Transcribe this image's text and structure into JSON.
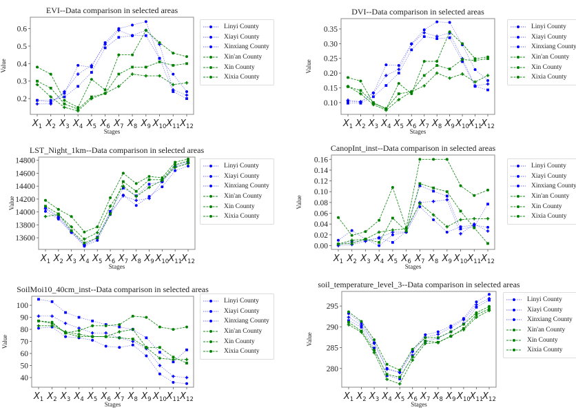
{
  "colors": {
    "blue": "#0000ff",
    "green": "#008000",
    "frame": "#888888"
  },
  "legend": [
    "Linyi County",
    "Xiayi County",
    "Xinxiang County",
    "Xin'an County",
    "Xin County",
    "Xixia County"
  ],
  "chart_data": [
    {
      "type": "line",
      "title": "EVI--Data comparison in selected areas",
      "xlabel": "Stages",
      "ylabel": "Value",
      "categories": [
        "X1",
        "X2",
        "X3",
        "X4",
        "X5",
        "X6",
        "X7",
        "X8",
        "X9",
        "X10",
        "X11",
        "X12"
      ],
      "yticks": [
        0.2,
        0.3,
        0.4,
        0.5,
        0.6
      ],
      "ylim": [
        0.11,
        0.665
      ],
      "legend_position": "outside-right",
      "series": [
        {
          "name": "Linyi County",
          "color": "blue",
          "values": [
            0.19,
            0.18,
            0.23,
            0.39,
            0.38,
            0.52,
            0.6,
            0.62,
            0.64,
            0.43,
            0.34,
            0.24
          ]
        },
        {
          "name": "Xiayi County",
          "color": "blue",
          "values": [
            0.17,
            0.17,
            0.24,
            0.34,
            0.39,
            0.51,
            0.59,
            0.56,
            0.59,
            0.51,
            0.25,
            0.22
          ]
        },
        {
          "name": "Xinxiang County",
          "color": "blue",
          "values": [
            0.19,
            0.19,
            0.21,
            0.27,
            0.35,
            0.49,
            0.55,
            0.56,
            0.56,
            0.43,
            0.24,
            0.2
          ]
        },
        {
          "name": "Xin'an County",
          "color": "green",
          "values": [
            0.38,
            0.34,
            0.19,
            0.15,
            0.31,
            0.25,
            0.45,
            0.45,
            0.59,
            0.52,
            0.46,
            0.44
          ]
        },
        {
          "name": "Xin County",
          "color": "green",
          "values": [
            0.28,
            0.21,
            0.15,
            0.13,
            0.2,
            0.23,
            0.27,
            0.34,
            0.33,
            0.33,
            0.28,
            0.29
          ]
        },
        {
          "name": "Xixia County",
          "color": "green",
          "values": [
            0.3,
            0.26,
            0.17,
            0.14,
            0.21,
            0.23,
            0.34,
            0.38,
            0.38,
            0.41,
            0.39,
            0.4
          ]
        }
      ]
    },
    {
      "type": "line",
      "title": "DVI--Data comparison in selected areas",
      "xlabel": "Stages",
      "ylabel": "Value",
      "categories": [
        "X1",
        "X2",
        "X3",
        "X4",
        "X5",
        "X6",
        "X7",
        "X8",
        "X9",
        "X10",
        "X11",
        "X12"
      ],
      "yticks": [
        0.1,
        0.15,
        0.2,
        0.25,
        0.3,
        0.35
      ],
      "yticklabels": [
        "0.10",
        "0.15",
        "0.20",
        "0.25",
        "0.30",
        "0.35"
      ],
      "ylim": [
        0.06,
        0.385
      ],
      "legend_position": "outside-right",
      "series": [
        {
          "name": "Linyi County",
          "color": "blue",
          "values": [
            0.105,
            0.102,
            0.133,
            0.228,
            0.226,
            0.3,
            0.347,
            0.374,
            0.372,
            0.296,
            0.212,
            0.175
          ]
        },
        {
          "name": "Xiayi County",
          "color": "blue",
          "values": [
            0.108,
            0.103,
            0.132,
            0.192,
            0.213,
            0.298,
            0.337,
            0.325,
            0.336,
            0.249,
            0.157,
            0.163
          ]
        },
        {
          "name": "Xinxiang County",
          "color": "blue",
          "values": [
            0.098,
            0.098,
            0.12,
            0.158,
            0.2,
            0.279,
            0.324,
            0.317,
            0.32,
            0.239,
            0.155,
            0.143
          ]
        },
        {
          "name": "Xin'an County",
          "color": "green",
          "values": [
            0.185,
            0.173,
            0.098,
            0.078,
            0.165,
            0.13,
            0.24,
            0.24,
            0.34,
            0.3,
            0.249,
            0.255
          ]
        },
        {
          "name": "Xin County",
          "color": "green",
          "values": [
            0.155,
            0.13,
            0.093,
            0.074,
            0.11,
            0.137,
            0.157,
            0.2,
            0.183,
            0.197,
            0.17,
            0.192
          ]
        },
        {
          "name": "Xixia County",
          "color": "green",
          "values": [
            0.154,
            0.141,
            0.1,
            0.08,
            0.13,
            0.137,
            0.192,
            0.226,
            0.214,
            0.246,
            0.243,
            0.249
          ]
        }
      ]
    },
    {
      "type": "line",
      "title": "LST_Night_1km--Data comparison in selected areas",
      "xlabel": "Stages",
      "ylabel": "Value",
      "categories": [
        "X1",
        "X2",
        "X3",
        "X4",
        "X5",
        "X6",
        "X7",
        "X8",
        "X9",
        "X10",
        "X11",
        "X12"
      ],
      "yticks": [
        13600,
        13800,
        14000,
        14200,
        14400,
        14600,
        14800
      ],
      "ylim": [
        13420,
        14850
      ],
      "legend_position": "outside-right",
      "series": [
        {
          "name": "Linyi County",
          "color": "blue",
          "values": [
            14010,
            13890,
            13680,
            13470,
            13560,
            13960,
            14260,
            14100,
            14240,
            14390,
            14640,
            14710
          ]
        },
        {
          "name": "Xiayi County",
          "color": "blue",
          "values": [
            14050,
            13910,
            13690,
            13490,
            13590,
            13990,
            14250,
            14180,
            14210,
            14470,
            14700,
            14760
          ]
        },
        {
          "name": "Xinxiang County",
          "color": "blue",
          "values": [
            14060,
            13930,
            13700,
            13490,
            13610,
            14010,
            14370,
            14250,
            14430,
            14470,
            14720,
            14780
          ]
        },
        {
          "name": "Xin'an County",
          "color": "green",
          "values": [
            14180,
            14040,
            13930,
            13690,
            13770,
            14220,
            14600,
            14440,
            14550,
            14530,
            14770,
            14820
          ]
        },
        {
          "name": "Xin County",
          "color": "green",
          "values": [
            13930,
            13960,
            13770,
            13580,
            13680,
            14090,
            14400,
            14240,
            14380,
            14490,
            14690,
            14750
          ]
        },
        {
          "name": "Xixia County",
          "color": "green",
          "values": [
            14090,
            13970,
            13710,
            13520,
            13600,
            13970,
            14470,
            14320,
            14500,
            14500,
            14730,
            14790
          ]
        }
      ]
    },
    {
      "type": "line",
      "title": "CanopInt_inst--Data comparison in selected areas",
      "xlabel": "Stages",
      "ylabel": "Value",
      "categories": [
        "X1",
        "X2",
        "X3",
        "X4",
        "X5",
        "X6",
        "X7",
        "X8",
        "X9",
        "X10",
        "X11",
        "X12"
      ],
      "yticks": [
        0.0,
        0.02,
        0.04,
        0.06,
        0.08,
        0.1,
        0.12,
        0.14,
        0.16
      ],
      "yticklabels": [
        "0.00",
        "0.02",
        "0.04",
        "0.06",
        "0.08",
        "0.10",
        "0.12",
        "0.14",
        "0.16"
      ],
      "ylim": [
        -0.007,
        0.168
      ],
      "legend_position": "outside-right",
      "series": [
        {
          "name": "Linyi County",
          "color": "blue",
          "values": [
            0.01,
            0.028,
            0.012,
            0.0,
            0.02,
            0.025,
            0.072,
            0.048,
            0.025,
            0.035,
            0.038,
            0.034
          ]
        },
        {
          "name": "Xiayi County",
          "color": "blue",
          "values": [
            0.0,
            0.002,
            0.008,
            0.015,
            0.025,
            0.025,
            0.08,
            0.082,
            0.085,
            0.022,
            0.04,
            0.027
          ]
        },
        {
          "name": "Xinxiang County",
          "color": "blue",
          "values": [
            0.002,
            0.007,
            0.01,
            0.014,
            0.006,
            0.026,
            0.111,
            0.101,
            0.092,
            0.031,
            0.035,
            0.077
          ]
        },
        {
          "name": "Xin'an County",
          "color": "green",
          "values": [
            0.052,
            0.019,
            0.026,
            0.047,
            0.108,
            0.033,
            0.16,
            0.16,
            0.16,
            0.111,
            0.093,
            0.103
          ]
        },
        {
          "name": "Xin County",
          "color": "green",
          "values": [
            0.003,
            0.01,
            0.012,
            0.025,
            0.029,
            0.031,
            0.078,
            0.057,
            0.035,
            0.048,
            0.05,
            0.05
          ]
        },
        {
          "name": "Xixia County",
          "color": "green",
          "values": [
            0.003,
            0.004,
            0.012,
            0.006,
            0.051,
            0.027,
            0.115,
            0.107,
            0.1,
            0.064,
            0.033,
            0.004
          ]
        }
      ]
    },
    {
      "type": "line",
      "title": "SoilMoi10_40cm_inst--Data comparison in selected areas",
      "xlabel": "Stages",
      "ylabel": "Value",
      "categories": [
        "X1",
        "X2",
        "X3",
        "X4",
        "X5",
        "X6",
        "X7",
        "X8",
        "X9",
        "X10",
        "X11",
        "X12"
      ],
      "yticks": [
        40,
        50,
        60,
        70,
        80,
        90,
        100
      ],
      "ylim": [
        32,
        107.5
      ],
      "legend_position": "outside-right",
      "series": [
        {
          "name": "Linyi County",
          "color": "blue",
          "values": [
            81,
            82,
            74,
            73,
            71,
            66,
            65,
            67,
            58,
            43,
            36,
            35
          ]
        },
        {
          "name": "Xiayi County",
          "color": "blue",
          "values": [
            91,
            91,
            85,
            81,
            77,
            77,
            73,
            70,
            64,
            50,
            41,
            40
          ]
        },
        {
          "name": "Xinxiang County",
          "color": "blue",
          "values": [
            105,
            103,
            94,
            90,
            87,
            84,
            82,
            80,
            73,
            61,
            53,
            63
          ]
        },
        {
          "name": "Xin'an County",
          "color": "green",
          "values": [
            87,
            86,
            77,
            79,
            83,
            83,
            84,
            91,
            90,
            82,
            80,
            82
          ]
        },
        {
          "name": "Xin County",
          "color": "green",
          "values": [
            83,
            83,
            78,
            76,
            74,
            74,
            78,
            80,
            65,
            56,
            55,
            55
          ]
        },
        {
          "name": "Xixia County",
          "color": "green",
          "values": [
            87,
            85,
            77,
            74,
            74,
            74,
            73,
            72,
            65,
            65,
            57,
            52
          ]
        }
      ]
    },
    {
      "type": "line",
      "title": "soil_temperature_level_3--Data comparison in selected areas",
      "xlabel": "Stages",
      "ylabel": "Value",
      "categories": [
        "X1",
        "X2",
        "X3",
        "X4",
        "X5",
        "X6",
        "X7",
        "X8",
        "X9",
        "X10",
        "X11",
        "X12"
      ],
      "yticks": [
        280,
        285,
        290,
        295
      ],
      "ylim": [
        275.5,
        298.5
      ],
      "legend_position": "outside-right",
      "series": [
        {
          "name": "Linyi County",
          "color": "blue",
          "values": [
            293.2,
            290.9,
            286.2,
            280.0,
            279.1,
            284.3,
            288.1,
            288.8,
            290.2,
            292.0,
            296.0,
            297.8
          ]
        },
        {
          "name": "Xiayi County",
          "color": "blue",
          "values": [
            292.3,
            290.4,
            286.0,
            279.8,
            279.0,
            284.0,
            287.5,
            288.2,
            289.8,
            291.7,
            295.3,
            296.8
          ]
        },
        {
          "name": "Xinxiang County",
          "color": "blue",
          "values": [
            291.5,
            289.9,
            284.9,
            278.3,
            277.5,
            283.1,
            286.5,
            287.3,
            288.8,
            290.7,
            294.7,
            296.4
          ]
        },
        {
          "name": "Xin'an County",
          "color": "green",
          "values": [
            293.6,
            291.3,
            286.9,
            281.0,
            279.6,
            284.6,
            287.4,
            287.4,
            288.8,
            290.6,
            293.4,
            294.9
          ]
        },
        {
          "name": "Xin County",
          "color": "green",
          "values": [
            290.5,
            288.7,
            283.8,
            277.4,
            276.3,
            282.0,
            286.0,
            286.2,
            287.8,
            289.3,
            292.3,
            293.9
          ]
        },
        {
          "name": "Xixia County",
          "color": "green",
          "values": [
            291.1,
            289.0,
            284.4,
            278.6,
            277.9,
            282.8,
            286.6,
            286.3,
            287.7,
            289.6,
            292.9,
            294.3
          ]
        }
      ]
    }
  ]
}
